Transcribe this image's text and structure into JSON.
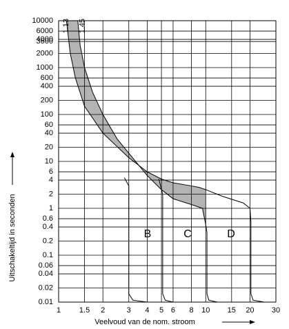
{
  "chart_data": {
    "type": "line",
    "log_x": true,
    "log_y": true,
    "grid": true,
    "xlabel": "Veelvoud van de nom. stroom",
    "ylabel": "Uitschakeltijd in seconden",
    "xlim": [
      1,
      30
    ],
    "ylim": [
      0.01,
      10000
    ],
    "xticks": [
      1,
      1.5,
      2,
      3,
      4,
      5,
      6,
      8,
      10,
      15,
      20,
      30
    ],
    "yticks": [
      0.01,
      0.02,
      0.04,
      0.06,
      0.1,
      0.2,
      0.4,
      0.6,
      1,
      2,
      4,
      6,
      10,
      20,
      40,
      60,
      100,
      200,
      400,
      600,
      1000,
      2000,
      3600,
      4000,
      6000,
      10000
    ],
    "top_ticks": [
      1.13,
      1.45
    ],
    "band_color": "#b4b4b4",
    "annotations": [
      "B",
      "C",
      "D"
    ],
    "series": [
      {
        "color": "#000000",
        "x": [
          1.13,
          1.2,
          1.3,
          1.5,
          2,
          3,
          4,
          5,
          6,
          8,
          9,
          10
        ],
        "values": [
          10000,
          2000,
          600,
          150,
          40,
          12,
          6,
          4.2,
          3.5,
          3,
          2.8,
          2.5
        ]
      },
      {
        "color": "#000000",
        "x": [
          1.35,
          1.4,
          1.5,
          1.7,
          2,
          2.5,
          3,
          4,
          5,
          6,
          8,
          9.5,
          10
        ],
        "values": [
          10000,
          3000,
          1000,
          300,
          100,
          30,
          15,
          5,
          2.5,
          1.6,
          1.2,
          1,
          0.45
        ]
      },
      {
        "color": "#000000",
        "x": [
          2.8,
          3,
          3,
          3.2,
          4
        ],
        "values": [
          4.5,
          3,
          0.015,
          0.011,
          0.01
        ]
      },
      {
        "color": "#000000",
        "x": [
          4.8,
          5.1,
          5.1,
          5.3,
          6
        ],
        "values": [
          4.2,
          2,
          0.015,
          0.011,
          0.01
        ]
      },
      {
        "color": "#000000",
        "x": [
          10,
          10.2,
          10.2,
          10.5,
          12
        ],
        "values": [
          0.45,
          0.3,
          0.015,
          0.011,
          0.01
        ]
      },
      {
        "color": "#000000",
        "x": [
          10,
          13,
          18,
          20,
          20.3,
          20.3,
          21,
          25
        ],
        "values": [
          2.5,
          1.8,
          1.3,
          1,
          0.5,
          0.015,
          0.011,
          0.01
        ]
      }
    ]
  }
}
